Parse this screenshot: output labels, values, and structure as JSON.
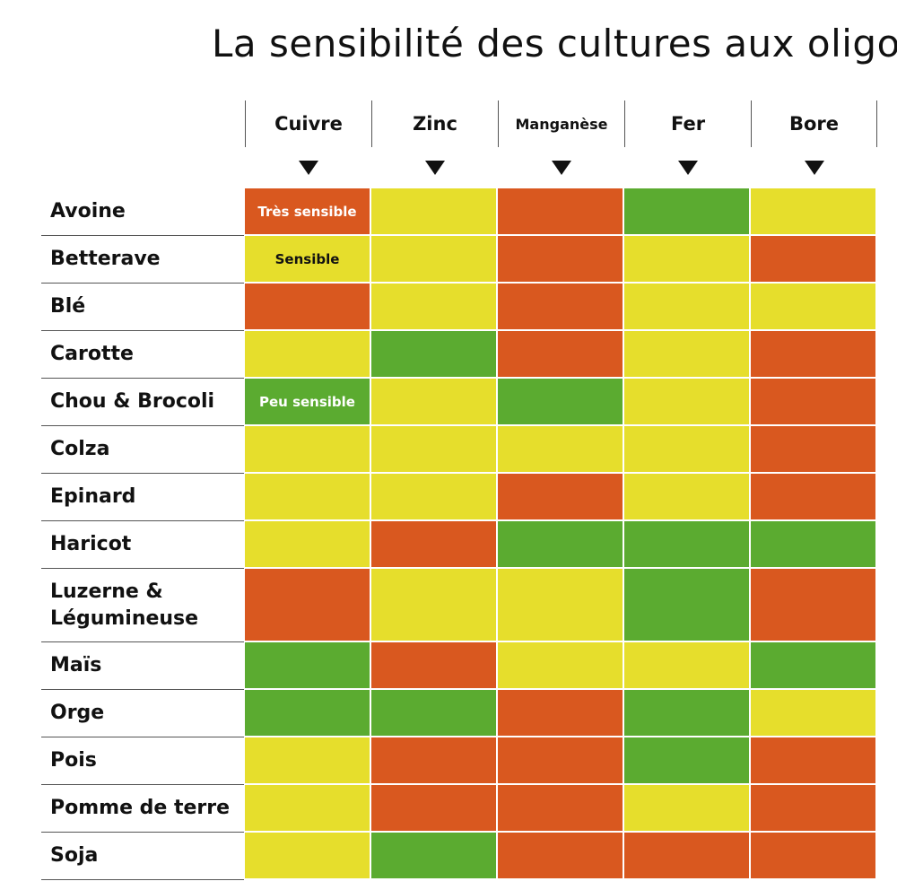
{
  "title": "La sensibilité des cultures aux oligos",
  "colors": {
    "tres_sensible": "#d9581f",
    "sensible": "#e6de2c",
    "peu_sensible": "#5bab30"
  },
  "chart_data": {
    "type": "table",
    "columns": [
      "Cuivre",
      "Zinc",
      "Manganèse",
      "Fer",
      "Bore"
    ],
    "legend_labels": {
      "0": {
        "row": 0,
        "col": 0,
        "text": "Très sensible",
        "color": "#ffffff"
      },
      "1": {
        "row": 1,
        "col": 0,
        "text": "Sensible",
        "color": "#111111"
      },
      "2": {
        "row": 4,
        "col": 0,
        "text": "Peu sensible",
        "color": "#ffffff"
      }
    },
    "levels": {
      "R": "Très sensible",
      "Y": "Sensible",
      "G": "Peu sensible"
    },
    "rows": [
      {
        "label": "Avoine",
        "values": [
          "R",
          "Y",
          "R",
          "G",
          "Y"
        ]
      },
      {
        "label": "Betterave",
        "values": [
          "Y",
          "Y",
          "R",
          "Y",
          "R"
        ]
      },
      {
        "label": "Blé",
        "values": [
          "R",
          "Y",
          "R",
          "Y",
          "Y"
        ]
      },
      {
        "label": "Carotte",
        "values": [
          "Y",
          "G",
          "R",
          "Y",
          "R"
        ]
      },
      {
        "label": "Chou & Brocoli",
        "values": [
          "G",
          "Y",
          "G",
          "Y",
          "R"
        ]
      },
      {
        "label": "Colza",
        "values": [
          "Y",
          "Y",
          "Y",
          "Y",
          "R"
        ]
      },
      {
        "label": "Epinard",
        "values": [
          "Y",
          "Y",
          "R",
          "Y",
          "R"
        ]
      },
      {
        "label": "Haricot",
        "values": [
          "Y",
          "R",
          "G",
          "G",
          "G"
        ]
      },
      {
        "label": "Luzerne & Légumineuse",
        "values": [
          "R",
          "Y",
          "Y",
          "G",
          "R"
        ]
      },
      {
        "label": "Maïs",
        "values": [
          "G",
          "R",
          "Y",
          "Y",
          "G"
        ]
      },
      {
        "label": "Orge",
        "values": [
          "G",
          "G",
          "R",
          "G",
          "Y"
        ]
      },
      {
        "label": "Pois",
        "values": [
          "Y",
          "R",
          "R",
          "G",
          "R"
        ]
      },
      {
        "label": "Pomme de terre",
        "values": [
          "Y",
          "R",
          "R",
          "Y",
          "R"
        ]
      },
      {
        "label": "Soja",
        "values": [
          "Y",
          "G",
          "R",
          "R",
          "R"
        ]
      }
    ]
  }
}
